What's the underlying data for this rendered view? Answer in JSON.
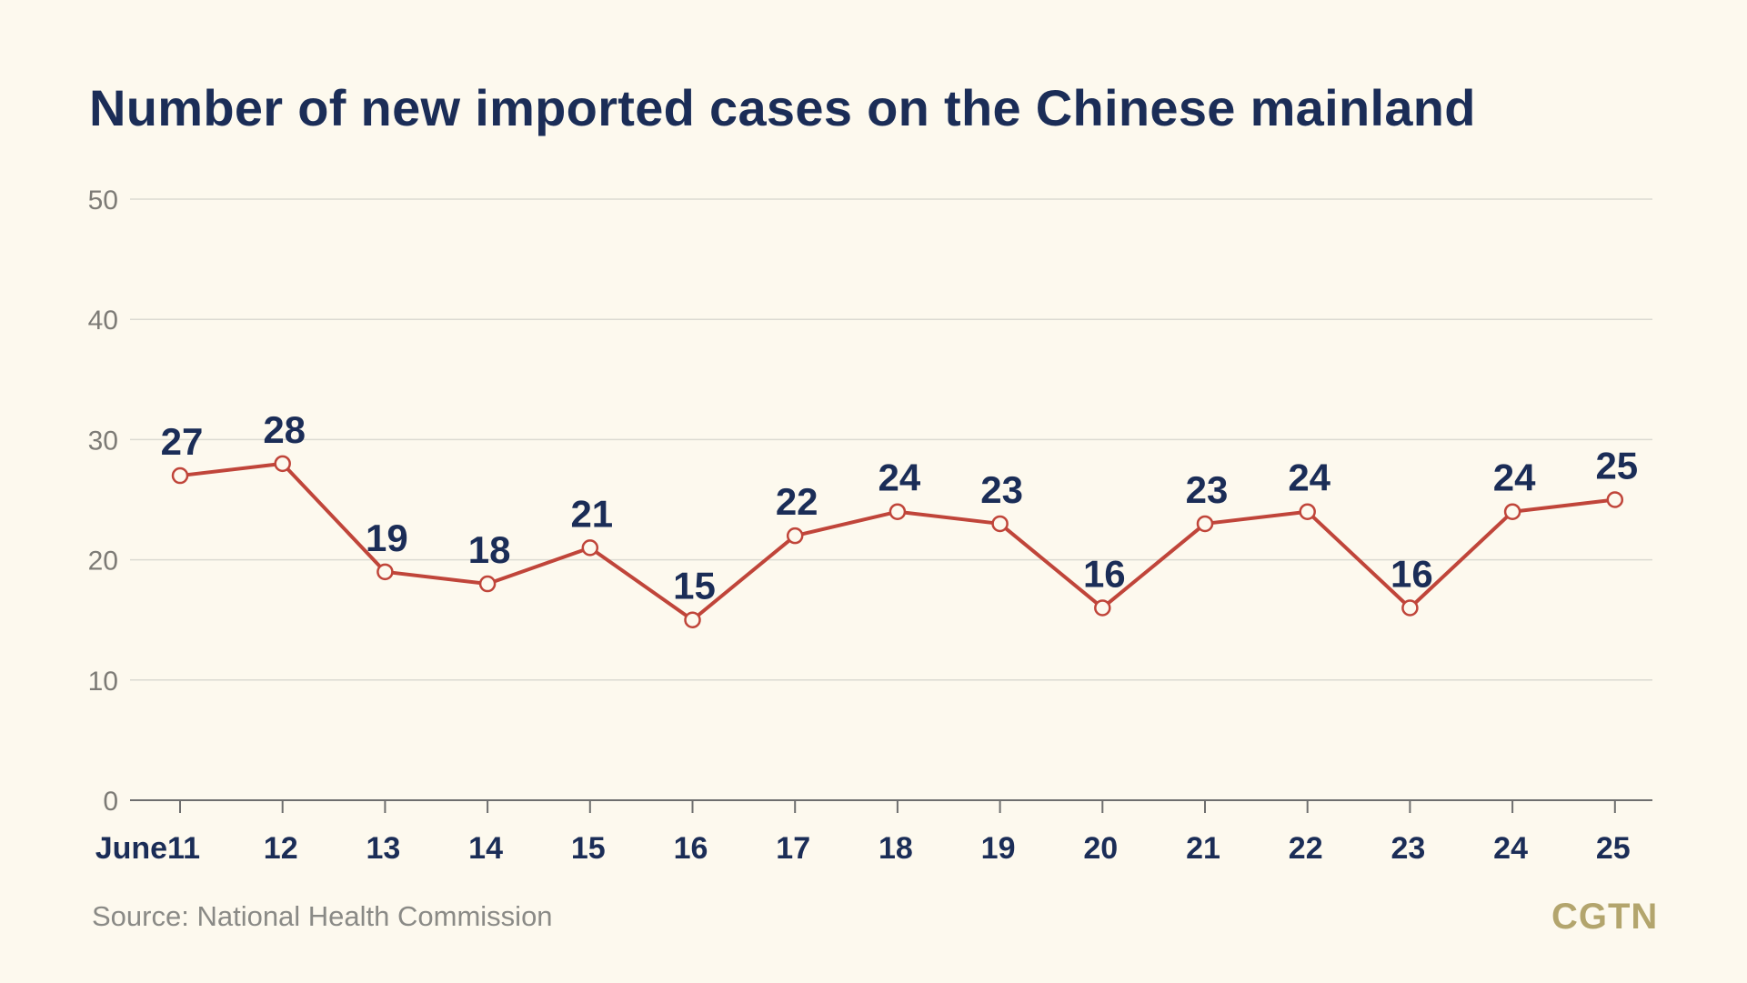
{
  "title": "Number of new imported cases on the Chinese mainland",
  "source": "Source: National Health Commission",
  "logo": "CGTN",
  "colors": {
    "background": "#fdf9ee",
    "line": "#c0453a",
    "marker_fill": "#fdf9ee",
    "title": "#1b2d57",
    "grid": "#dcdad2",
    "axis": "#6e6e6e",
    "logo": "#b3a56d"
  },
  "chart_data": {
    "type": "line",
    "title": "Number of new imported cases on the Chinese mainland",
    "xlabel": "",
    "ylabel": "",
    "x_prefix": "June",
    "categories": [
      "11",
      "12",
      "13",
      "14",
      "15",
      "16",
      "17",
      "18",
      "19",
      "20",
      "21",
      "22",
      "23",
      "24",
      "25"
    ],
    "values": [
      27,
      28,
      19,
      18,
      21,
      15,
      22,
      24,
      23,
      16,
      23,
      24,
      16,
      24,
      25
    ],
    "ylim": [
      0,
      50
    ],
    "yticks": [
      0,
      10,
      20,
      30,
      40,
      50
    ],
    "grid": true,
    "legend": "none"
  }
}
